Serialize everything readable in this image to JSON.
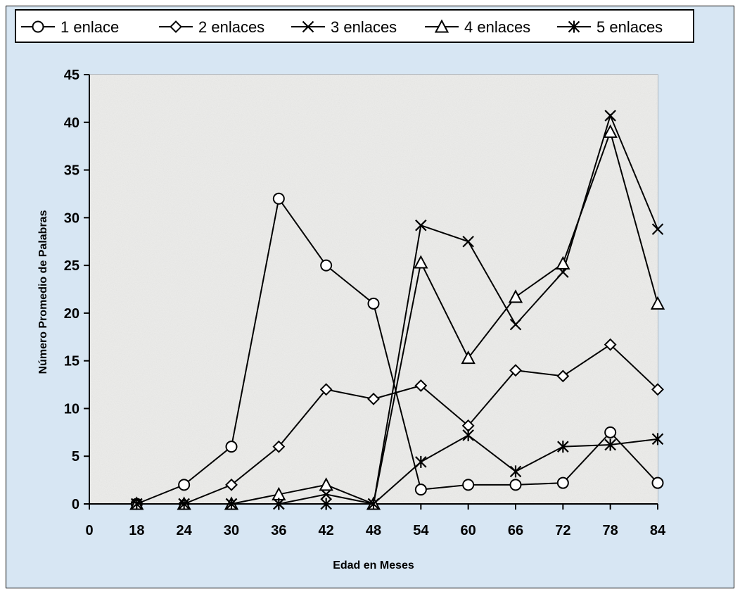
{
  "chart_data": {
    "type": "line",
    "title": "",
    "xlabel": "Edad en Meses",
    "ylabel": "Número Promedio de Palabras",
    "categories": [
      "0",
      "18",
      "24",
      "30",
      "36",
      "42",
      "48",
      "54",
      "60",
      "66",
      "72",
      "78",
      "84"
    ],
    "ylim": [
      0,
      45
    ],
    "yticks": [
      0,
      5,
      10,
      15,
      20,
      25,
      30,
      35,
      40,
      45
    ],
    "grid": false,
    "legend_position": "top",
    "series": [
      {
        "name": "1 enlace",
        "marker": "circle",
        "values": [
          null,
          0,
          2,
          6,
          32,
          25,
          21,
          1.5,
          2,
          2,
          2.2,
          7.5,
          2.2
        ]
      },
      {
        "name": "2 enlaces",
        "marker": "diamond",
        "values": [
          null,
          0,
          0,
          2,
          6,
          12,
          11,
          12.4,
          8.2,
          14,
          13.4,
          16.7,
          12
        ]
      },
      {
        "name": "3 enlaces",
        "marker": "x",
        "values": [
          null,
          0,
          0,
          0,
          0,
          1,
          0,
          29.2,
          27.5,
          18.8,
          24.3,
          40.7,
          28.8
        ]
      },
      {
        "name": "4 enlaces",
        "marker": "triangle",
        "values": [
          null,
          0,
          0,
          0,
          1,
          2,
          0,
          25.3,
          15.3,
          21.7,
          25.2,
          39,
          21
        ]
      },
      {
        "name": "5 enlaces",
        "marker": "asterisk",
        "values": [
          null,
          0,
          0,
          0,
          0,
          0,
          0,
          4.4,
          7.2,
          3.4,
          6,
          6.2,
          6.8
        ]
      }
    ],
    "colors": {
      "background": "#d7e6f3",
      "plot_area": "#ececea",
      "line": "#000000"
    }
  }
}
